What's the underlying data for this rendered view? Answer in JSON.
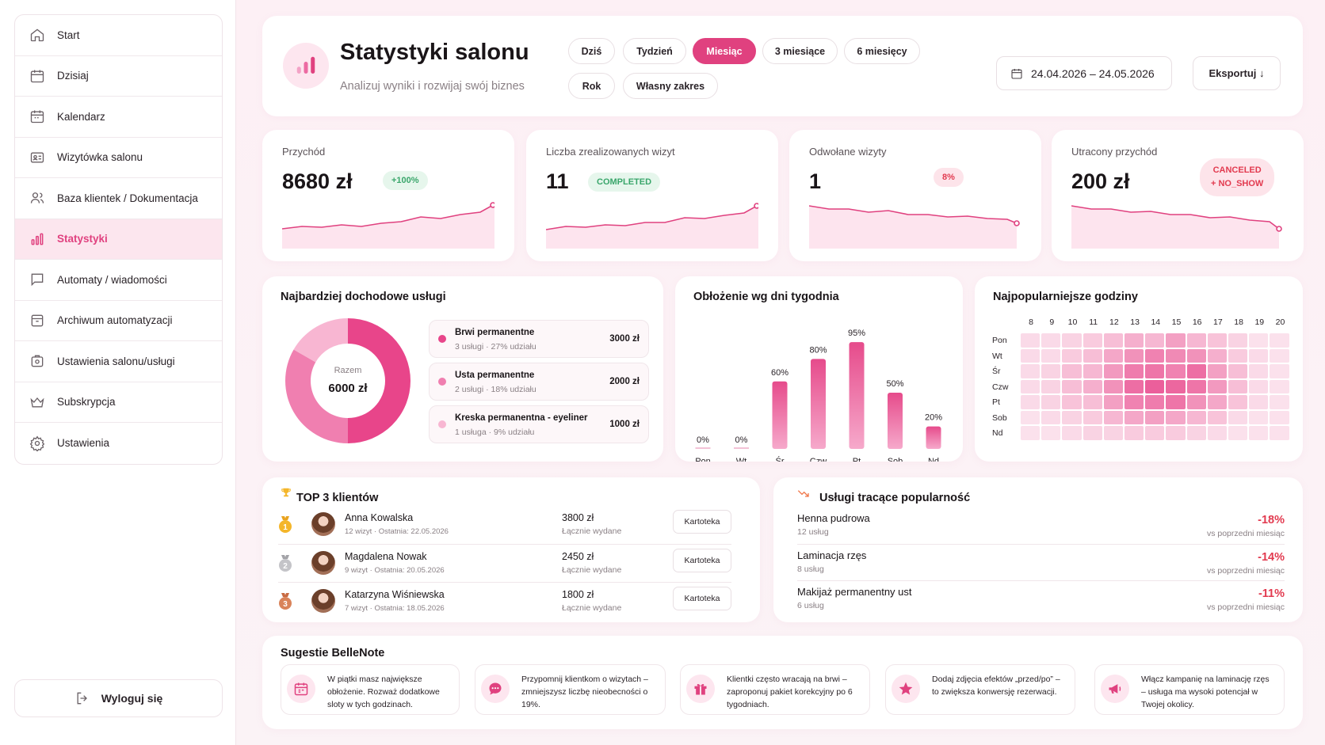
{
  "sidebar": {
    "items": [
      {
        "label": "Start",
        "icon": "home-icon"
      },
      {
        "label": "Dzisiaj",
        "icon": "calendar-icon"
      },
      {
        "label": "Kalendarz",
        "icon": "calendar-icon"
      },
      {
        "label": "Wizytówka salonu",
        "icon": "id-card-icon"
      },
      {
        "label": "Baza klientek / Dokumentacja",
        "icon": "users-icon"
      },
      {
        "label": "Statystyki",
        "icon": "chart-icon",
        "active": true
      },
      {
        "label": "Automaty / wiadomości",
        "icon": "message-icon"
      },
      {
        "label": "Archiwum automatyzacji",
        "icon": "archive-icon"
      },
      {
        "label": "Ustawienia salonu/usługi",
        "icon": "settings-box-icon"
      },
      {
        "label": "Subskrypcja",
        "icon": "crown-icon"
      },
      {
        "label": "Ustawienia",
        "icon": "gear-icon"
      }
    ],
    "logout": "Wyloguj się"
  },
  "header": {
    "title": "Statystyki salonu",
    "subtitle": "Analizuj wyniki i rozwijaj swój biznes",
    "periods": [
      "Dziś",
      "Tydzień",
      "Miesiąc",
      "3 miesiące",
      "6 miesięcy",
      "Rok",
      "Własny zakres"
    ],
    "active_period": "Miesiąc",
    "date_range": "24.04.2026 – 24.05.2026",
    "export_label": "Eksportuj ↓"
  },
  "kpis": [
    {
      "label": "Przychód",
      "value": "8680 zł",
      "badge": "+100%"
    },
    {
      "label": "Liczba zrealizowanych wizyt",
      "value": "11",
      "badge": "COMPLETED"
    },
    {
      "label": "Odwołane wizyty",
      "value": "1",
      "badge": "8%"
    },
    {
      "label": "Utracony przychód",
      "value": "200 zł",
      "badge_line1": "CANCELED",
      "badge_line2": "+ NO_SHOW"
    }
  ],
  "top_services": {
    "title": "Najbardziej dochodowe usługi",
    "center_label": "Razem",
    "center_value": "6000 zł",
    "items": [
      {
        "name": "Brwi permanentne",
        "sub": "3 usługi · 27% udziału",
        "amount": "3000 zł",
        "color": "#e8458a",
        "value": 3000
      },
      {
        "name": "Usta permanentne",
        "sub": "2 usługi · 18% udziału",
        "amount": "2000 zł",
        "color": "#f07fb0",
        "value": 2000
      },
      {
        "name": "Kreska permanentna - eyeliner",
        "sub": "1 usługa · 9% udziału",
        "amount": "1000 zł",
        "color": "#f8b6d2",
        "value": 1000
      }
    ]
  },
  "chart_data": {
    "type": "bar",
    "title": "Obłożenie wg dni tygodnia",
    "categories": [
      "Pon",
      "Wt",
      "Śr",
      "Czw",
      "Pt",
      "Sob",
      "Nd"
    ],
    "values": [
      0,
      0,
      60,
      80,
      95,
      50,
      20
    ],
    "value_labels": [
      "0%",
      "0%",
      "60%",
      "80%",
      "95%",
      "50%",
      "20%"
    ],
    "ylim": [
      0,
      100
    ],
    "grid": false
  },
  "heatmap": {
    "title": "Najpopularniejsze godziny",
    "hours": [
      "8",
      "9",
      "10",
      "11",
      "12",
      "13",
      "14",
      "15",
      "16",
      "17",
      "18",
      "19",
      "20"
    ],
    "days": [
      "Pon",
      "Wt",
      "Śr",
      "Czw",
      "Pt",
      "Sob",
      "Nd"
    ],
    "intensity": [
      [
        0.1,
        0.1,
        0.15,
        0.2,
        0.3,
        0.4,
        0.35,
        0.5,
        0.35,
        0.25,
        0.15,
        0.05,
        0.05
      ],
      [
        0.1,
        0.1,
        0.2,
        0.3,
        0.45,
        0.6,
        0.7,
        0.65,
        0.6,
        0.4,
        0.2,
        0.1,
        0.05
      ],
      [
        0.1,
        0.15,
        0.3,
        0.35,
        0.55,
        0.75,
        0.8,
        0.7,
        0.85,
        0.5,
        0.3,
        0.1,
        0.05
      ],
      [
        0.1,
        0.15,
        0.3,
        0.4,
        0.6,
        0.85,
        0.95,
        0.9,
        0.8,
        0.55,
        0.3,
        0.1,
        0.05
      ],
      [
        0.1,
        0.15,
        0.25,
        0.3,
        0.5,
        0.7,
        0.75,
        0.8,
        0.6,
        0.45,
        0.25,
        0.1,
        0.05
      ],
      [
        0.05,
        0.1,
        0.15,
        0.2,
        0.35,
        0.45,
        0.5,
        0.45,
        0.35,
        0.25,
        0.1,
        0.05,
        0.05
      ],
      [
        0.05,
        0.05,
        0.1,
        0.15,
        0.15,
        0.2,
        0.2,
        0.2,
        0.15,
        0.1,
        0.05,
        0.05,
        0.05
      ]
    ]
  },
  "top_clients": {
    "title": "TOP 3 klientów",
    "button_label": "Kartoteka",
    "items": [
      {
        "rank": "1",
        "name": "Anna Kowalska",
        "sub": "12 wizyt · Ostatnia: 22.05.2026",
        "amount": "3800 zł",
        "amount_sub": "Łącznie wydane",
        "medal_color": "#f4b62a"
      },
      {
        "rank": "2",
        "name": "Magdalena Nowak",
        "sub": "9 wizyt · Ostatnia: 20.05.2026",
        "amount": "2450 zł",
        "amount_sub": "Łącznie wydane",
        "medal_color": "#b8b8bc"
      },
      {
        "rank": "3",
        "name": "Katarzyna Wiśniewska",
        "sub": "7 wizyt · Ostatnia: 18.05.2026",
        "amount": "1800 zł",
        "amount_sub": "Łącznie wydane",
        "medal_color": "#d9835a"
      }
    ]
  },
  "declining": {
    "title": "Usługi tracące popularność",
    "items": [
      {
        "name": "Henna pudrowa",
        "sub": "12 usług",
        "pct": "-18%",
        "cmp": "vs poprzedni miesiąc"
      },
      {
        "name": "Laminacja rzęs",
        "sub": "8 usług",
        "pct": "-14%",
        "cmp": "vs poprzedni miesiąc"
      },
      {
        "name": "Makijaż permanentny ust",
        "sub": "6 usług",
        "pct": "-11%",
        "cmp": "vs poprzedni miesiąc"
      }
    ]
  },
  "suggestions": {
    "title": "Sugestie BelleNote",
    "items": [
      {
        "icon": "calendar-icon",
        "text": "W piątki masz największe obłożenie. Rozważ dodatkowe sloty w tych godzinach."
      },
      {
        "icon": "chat-icon",
        "text": "Przypomnij klientkom o wizytach – zmniejszysz liczbę nieobecności o 19%."
      },
      {
        "icon": "gift-icon",
        "text": "Klientki często wracają na brwi – zaproponuj pakiet korekcyjny po 6 tygodniach."
      },
      {
        "icon": "star-icon",
        "text": "Dodaj zdjęcia efektów „przed/po” – to zwiększa konwersję rezerwacji."
      },
      {
        "icon": "megaphone-icon",
        "text": "Włącz kampanię na laminację rzęs – usługa ma wysoki potencjał w Twojej okolicy."
      }
    ]
  },
  "colors": {
    "accent": "#e0417f",
    "negative": "#e23a4f",
    "positive": "#3aa66b"
  }
}
